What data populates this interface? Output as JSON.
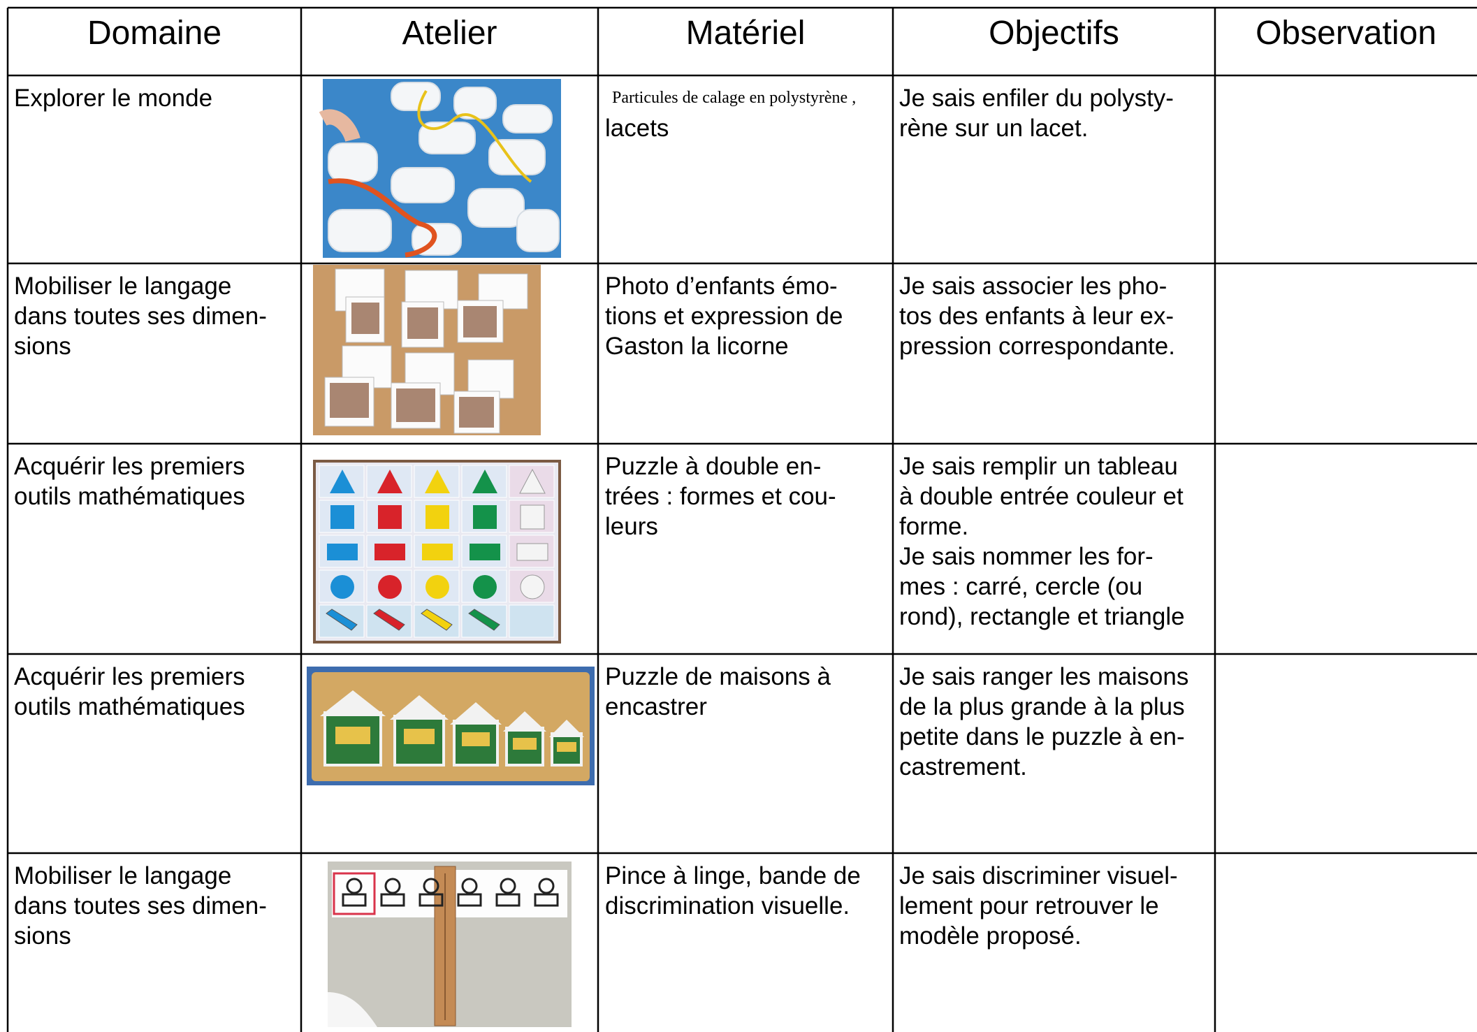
{
  "table": {
    "header": [
      "Domaine",
      "Atelier",
      "Matériel",
      "Objectifs",
      "Observation"
    ],
    "rows": [
      {
        "domaine": [
          "Explorer le monde"
        ],
        "materiel": [
          "Particules de calage en polystyrène ,",
          "lacets"
        ],
        "objectifs": [
          "Je sais enfiler du polysty-",
          "rène sur un lacet."
        ]
      },
      {
        "domaine": [
          "Mobiliser le langage",
          "dans toutes ses dimen-",
          "sions"
        ],
        "materiel": [
          "Photo d’enfants émo-",
          "tions et expression de",
          "Gaston la licorne"
        ],
        "objectifs": [
          "Je sais associer les pho-",
          "tos des enfants à leur ex-",
          "pression correspondante."
        ]
      },
      {
        "domaine": [
          "Acquérir les premiers",
          "outils mathématiques"
        ],
        "materiel": [
          "Puzzle à double en-",
          "trées : formes et cou-",
          "leurs"
        ],
        "objectifs": [
          "Je sais remplir un tableau",
          "à double entrée couleur et",
          "forme.",
          "Je sais nommer les for-",
          "mes : carré, cercle (ou",
          "rond), rectangle et triangle"
        ]
      },
      {
        "domaine": [
          "Acquérir les premiers",
          "outils mathématiques"
        ],
        "materiel": [
          "Puzzle de maisons à",
          "encastrer"
        ],
        "objectifs": [
          "Je sais ranger les maisons",
          "de la plus grande à la plus",
          "petite dans le puzzle à en-",
          "castrement."
        ]
      },
      {
        "domaine": [
          "Mobiliser le langage",
          "dans toutes ses dimen-",
          "sions"
        ],
        "materiel": [
          "Pince à linge, bande de",
          "discrimination visuelle."
        ],
        "objectifs": [
          "Je sais discriminer visuel-",
          "lement pour retrouver le",
          "modèle proposé."
        ]
      }
    ]
  }
}
